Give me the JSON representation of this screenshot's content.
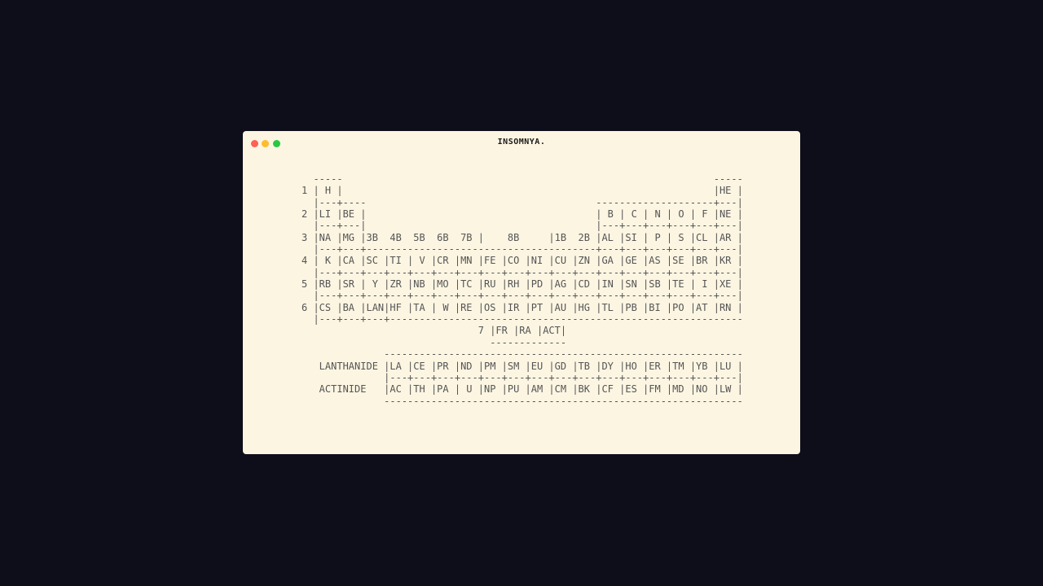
{
  "window": {
    "title": "INSOMNYA.",
    "controls": [
      "close",
      "minimize",
      "maximize"
    ],
    "colors": {
      "close": "#fe5f57",
      "minimize": "#febc2e",
      "maximize": "#28c840",
      "background": "#fcf5e2"
    }
  },
  "table": {
    "lines": [
      "  -----                                                               -----",
      "1 | H |                                                               |HE |",
      "  |---+----                                       --------------------+---|",
      "2 |LI |BE |                                       | B | C | N | O | F |NE |",
      "  |---+---|                                       |---+---+---+---+---+---|",
      "3 |NA |MG |3B  4B  5B  6B  7B |    8B     |1B  2B |AL |SI | P | S |CL |AR |",
      "  |---+---+---------------------------------------+---+---+---+---+---+---|",
      "4 | K |CA |SC |TI | V |CR |MN |FE |CO |NI |CU |ZN |GA |GE |AS |SE |BR |KR |",
      "  |---+---+---+---+---+---+---+---+---+---+---+---+---+---+---+---+---+---|",
      "5 |RB |SR | Y |ZR |NB |MO |TC |RU |RH |PD |AG |CD |IN |SN |SB |TE | I |XE |",
      "  |---+---+---+---+---+---+---+---+---+---+---+---+---+---+---+---+---+---|",
      "6 |CS |BA |LAN|HF |TA | W |RE |OS |IR |PT |AU |HG |TL |PB |BI |PO |AT |RN |",
      "  |---+---+---+------------------------------------------------------------",
      "                              7 |FR |RA |ACT|",
      "                                -------------",
      "              -------------------------------------------------------------",
      "   LANTHANIDE |LA |CE |PR |ND |PM |SM |EU |GD |TB |DY |HO |ER |TM |YB |LU |",
      "              |---+---+---+---+---+---+---+---+---+---+---+---+---+---+---|",
      "   ACTINIDE   |AC |TH |PA | U |NP |PU |AM |CM |BK |CF |ES |FM |MD |NO |LW |",
      "              -------------------------------------------------------------"
    ]
  }
}
